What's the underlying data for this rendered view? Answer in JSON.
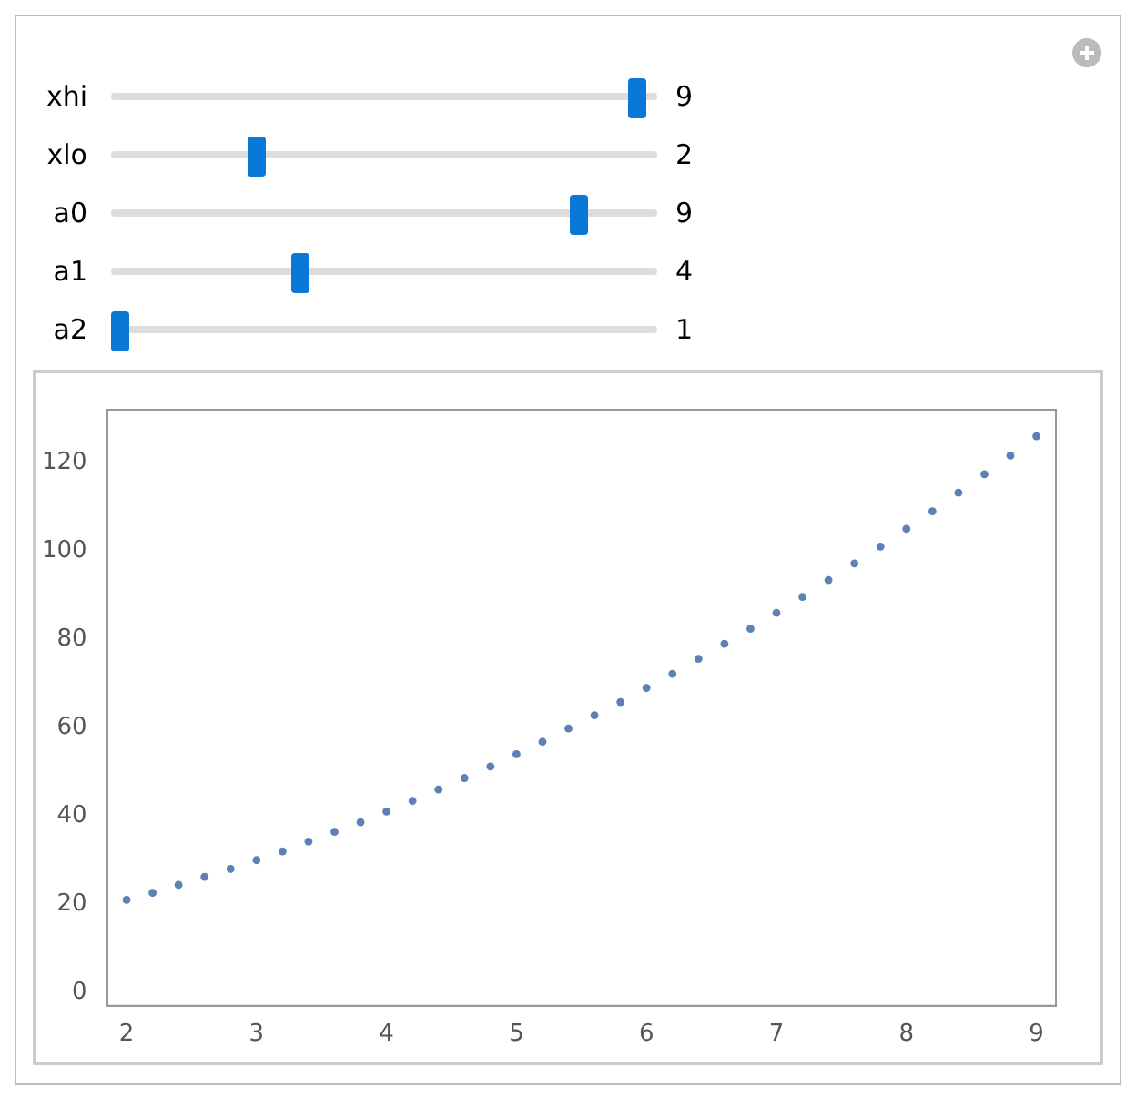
{
  "chart_data": {
    "type": "scatter",
    "annotations": [
      "xhi",
      "9",
      "xlo",
      "2",
      "a0",
      "9",
      "a1",
      "4",
      "a2",
      "1"
    ],
    "x": [
      2,
      2.2,
      2.4,
      2.6,
      2.8,
      3,
      3.2,
      3.4,
      3.6,
      3.8,
      4,
      4.2,
      4.4,
      4.6,
      4.8,
      5,
      5.2,
      5.4,
      5.6,
      5.8,
      6,
      6.2,
      6.4,
      6.6,
      6.8,
      7,
      7.2,
      7.4,
      7.6,
      7.8,
      8,
      8.2,
      8.4,
      8.6,
      8.8,
      9
    ],
    "values": [
      21,
      22.6,
      24.4,
      26.2,
      28,
      30,
      32,
      34.2,
      36.4,
      38.6,
      41,
      43.4,
      46,
      48.6,
      51.2,
      54,
      56.8,
      59.8,
      62.8,
      65.8,
      69,
      72.2,
      75.6,
      79,
      82.4,
      86,
      89.6,
      93.4,
      97.2,
      101,
      105,
      109,
      113.2,
      117.4,
      121.6,
      126
    ],
    "color": "#5e81b5",
    "marker": "circle",
    "xlim": [
      1.85,
      9.15
    ],
    "xticks": [
      2,
      3,
      4,
      5,
      6,
      7,
      8,
      9
    ],
    "ylim": [
      -3,
      132
    ],
    "yticks": [
      0,
      20,
      40,
      60,
      80,
      100,
      120
    ],
    "grid": false,
    "legend": false
  }
}
